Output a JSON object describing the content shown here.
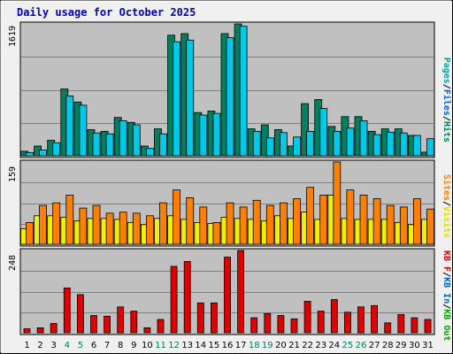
{
  "chart_data": {
    "type": "bar",
    "title": "Daily usage for October 2025",
    "categories": [
      "1",
      "2",
      "3",
      "4",
      "5",
      "6",
      "7",
      "8",
      "9",
      "10",
      "11",
      "12",
      "13",
      "14",
      "15",
      "16",
      "17",
      "18",
      "19",
      "20",
      "21",
      "22",
      "23",
      "24",
      "25",
      "26",
      "27",
      "28",
      "29",
      "30",
      "31"
    ],
    "weekend_days": [
      4,
      5,
      11,
      12,
      18,
      19,
      25,
      26
    ],
    "panels": [
      {
        "name": "hits-files-pages",
        "ymax_label": "1619",
        "ylabel_parts": [
          {
            "text": "Pages",
            "color": "#00a0a0"
          },
          {
            "text": "/",
            "color": "#000000"
          },
          {
            "text": "Files",
            "color": "#0060e0"
          },
          {
            "text": "/",
            "color": "#000000"
          },
          {
            "text": "Hits",
            "color": "#008060"
          }
        ],
        "ymax": 1619,
        "series": [
          {
            "name": "Hits",
            "color": "#008060",
            "values": [
              55,
              120,
              190,
              820,
              660,
              320,
              300,
              470,
              410,
              120,
              330,
              1480,
              1500,
              530,
              550,
              1500,
              1619,
              330,
              380,
              320,
              120,
              640,
              690,
              360,
              480,
              480,
              300,
              330,
              330,
              250,
              45
            ]
          },
          {
            "name": "Files",
            "color": "#00c8e8",
            "values": [
              40,
              70,
              160,
              735,
              620,
              280,
              270,
              430,
              380,
              90,
              270,
              1400,
              1420,
              500,
              520,
              1450,
              1590,
              300,
              220,
              285,
              230,
              300,
              580,
              300,
              340,
              430,
              260,
              290,
              280,
              250,
              210
            ]
          }
        ]
      },
      {
        "name": "visits-sites",
        "ymax_label": "159",
        "ylabel_parts": [
          {
            "text": "Sites",
            "color": "#ff8000"
          },
          {
            "text": "/",
            "color": "#000000"
          },
          {
            "text": "Visits",
            "color": "#e0e000"
          }
        ],
        "ymax": 159,
        "series": [
          {
            "name": "Visits",
            "color": "#f0f000",
            "values": [
              30,
              55,
              55,
              52,
              45,
              50,
              50,
              48,
              42,
              38,
              50,
              55,
              48,
              42,
              40,
              52,
              50,
              48,
              45,
              55,
              50,
              62,
              48,
              95,
              50,
              48,
              48,
              48,
              42,
              38,
              48
            ]
          },
          {
            "name": "Sites",
            "color": "#ff8000",
            "values": [
              42,
              75,
              80,
              95,
              70,
              75,
              60,
              62,
              60,
              55,
              80,
              105,
              90,
              72,
              42,
              80,
              72,
              85,
              75,
              80,
              88,
              110,
              95,
              159,
              105,
              95,
              88,
              75,
              72,
              88,
              68
            ]
          }
        ]
      },
      {
        "name": "kbytes",
        "ymax_label": "248",
        "ylabel_parts": [
          {
            "text": "KB F",
            "color": "#d00000"
          },
          {
            "text": "/",
            "color": "#000000"
          },
          {
            "text": "KB In",
            "color": "#0060e0"
          },
          {
            "text": "/",
            "color": "#000000"
          },
          {
            "text": "KB Out",
            "color": "#00a000"
          }
        ],
        "ymax": 248,
        "series": [
          {
            "name": "KBytes",
            "color": "#e00000",
            "values": [
              12,
              15,
              28,
              135,
              115,
              52,
              50,
              78,
              65,
              15,
              40,
              200,
              215,
              90,
              90,
              228,
              248,
              45,
              58,
              52,
              42,
              95,
              65,
              100,
              62,
              78,
              82,
              30,
              55,
              45,
              40
            ]
          }
        ]
      }
    ],
    "colors": {
      "background": "#f0f0f0",
      "plot_background": "#c0c0c0",
      "title": "#0000c0",
      "weekend_label": "#00805a",
      "weekday_label": "#000000"
    }
  }
}
